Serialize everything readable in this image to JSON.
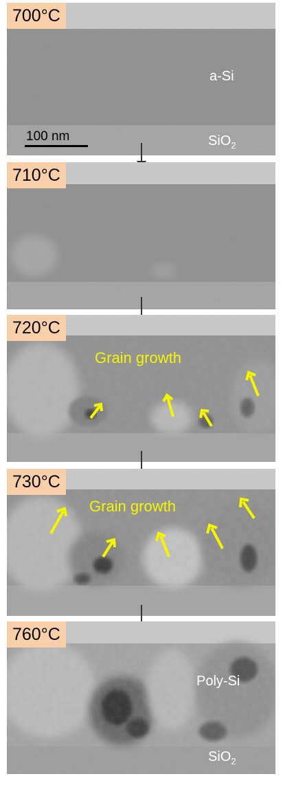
{
  "panels": [
    {
      "temperature": "700°C"
    },
    {
      "temperature": "710°C"
    },
    {
      "temperature": "720°C",
      "annotation": "Grain growth"
    },
    {
      "temperature": "730°C",
      "annotation": "Grain growth"
    },
    {
      "temperature": "760°C"
    }
  ],
  "labels": {
    "amorphous": "a-Si",
    "oxide_base": "SiO",
    "oxide_sub": "2",
    "poly": "Poly-Si",
    "scale_bar": "100 nm"
  },
  "colors": {
    "temp_badge": "#f9cfa9",
    "arrow_yellow": "#f5f500",
    "capping_layer": "#c8c8c8",
    "silicon_layer": "#8f8f8f",
    "oxide_layer": "#8b8b8b"
  }
}
